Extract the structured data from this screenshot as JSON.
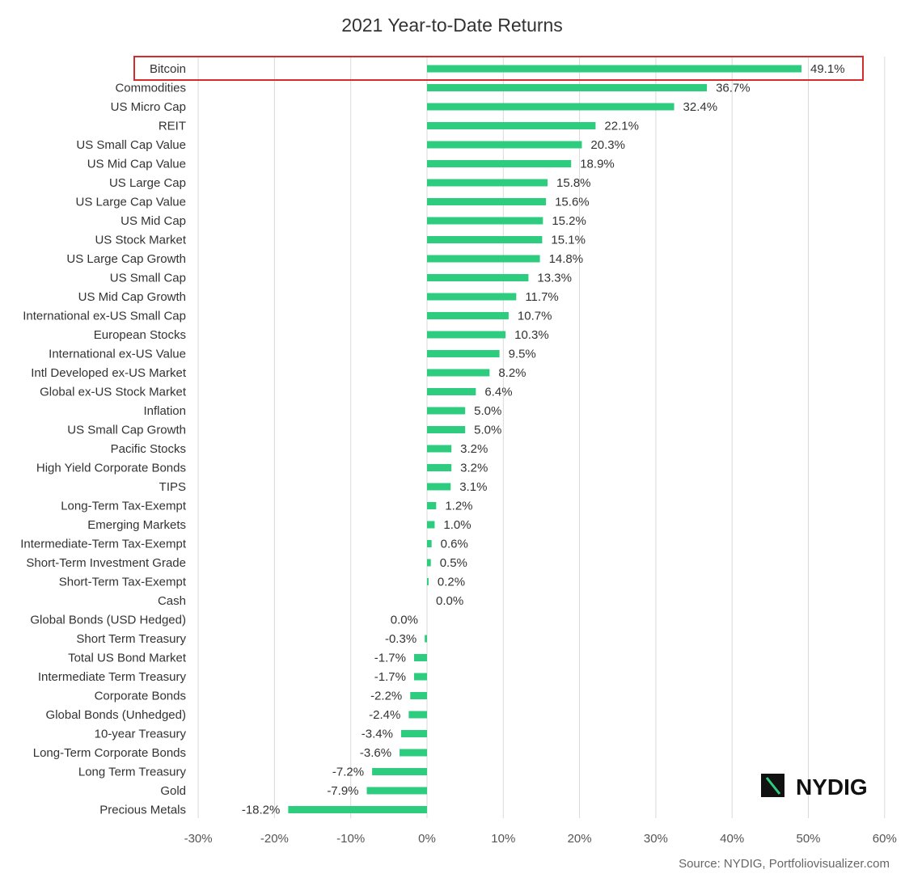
{
  "chart_data": {
    "type": "bar",
    "orientation": "horizontal",
    "title": "2021 Year-to-Date Returns",
    "xlabel": "",
    "ylabel": "",
    "xlim": [
      -30,
      60
    ],
    "x_ticks": [
      "-30%",
      "-20%",
      "-10%",
      "0%",
      "10%",
      "20%",
      "30%",
      "40%",
      "50%",
      "60%"
    ],
    "x_tick_values": [
      -30,
      -20,
      -10,
      0,
      10,
      20,
      30,
      40,
      50,
      60
    ],
    "grid": "vertical",
    "categories": [
      "Bitcoin",
      "Commodities",
      "US Micro Cap",
      "REIT",
      "US Small Cap Value",
      "US Mid Cap Value",
      "US Large Cap",
      "US Large Cap Value",
      "US Mid Cap",
      "US Stock Market",
      "US Large Cap Growth",
      "US Small Cap",
      "US Mid Cap Growth",
      "International ex-US Small Cap",
      "European Stocks",
      "International ex-US Value",
      "Intl Developed ex-US Market",
      "Global ex-US Stock Market",
      "Inflation",
      "US Small Cap Growth",
      "Pacific Stocks",
      "High Yield Corporate Bonds",
      "TIPS",
      "Long-Term Tax-Exempt",
      "Emerging Markets",
      "Intermediate-Term Tax-Exempt",
      "Short-Term Investment Grade",
      "Short-Term Tax-Exempt",
      "Cash",
      "Global Bonds (USD Hedged)",
      "Short Term Treasury",
      "Total US Bond Market",
      "Intermediate Term Treasury",
      "Corporate Bonds",
      "Global Bonds (Unhedged)",
      "10-year Treasury",
      "Long-Term Corporate Bonds",
      "Long Term Treasury",
      "Gold",
      "Precious Metals"
    ],
    "values": [
      49.1,
      36.7,
      32.4,
      22.1,
      20.3,
      18.9,
      15.8,
      15.6,
      15.2,
      15.1,
      14.8,
      13.3,
      11.7,
      10.7,
      10.3,
      9.5,
      8.2,
      6.4,
      5.0,
      5.0,
      3.2,
      3.2,
      3.1,
      1.2,
      1.0,
      0.6,
      0.5,
      0.2,
      0.0,
      0.0,
      -0.3,
      -1.7,
      -1.7,
      -2.2,
      -2.4,
      -3.4,
      -3.6,
      -7.2,
      -7.9,
      -18.2
    ],
    "value_labels": [
      "49.1%",
      "36.7%",
      "32.4%",
      "22.1%",
      "20.3%",
      "18.9%",
      "15.8%",
      "15.6%",
      "15.2%",
      "15.1%",
      "14.8%",
      "13.3%",
      "11.7%",
      "10.7%",
      "10.3%",
      "9.5%",
      "8.2%",
      "6.4%",
      "5.0%",
      "5.0%",
      "3.2%",
      "3.2%",
      "3.1%",
      "1.2%",
      "1.0%",
      "0.6%",
      "0.5%",
      "0.2%",
      "0.0%",
      "0.0%",
      "-0.3%",
      "-1.7%",
      "-1.7%",
      "-2.2%",
      "-2.4%",
      "-3.4%",
      "-3.6%",
      "-7.2%",
      "-7.9%",
      "-18.2%"
    ],
    "highlight": "Bitcoin"
  },
  "branding": {
    "logo_text": "NYDIG"
  },
  "source": "Source: NYDIG, Portfoliovisualizer.com",
  "colors": {
    "bar": "#2ecc7f",
    "highlight_box": "#d62b2b",
    "grid": "#d9d9d9",
    "text": "#333333",
    "logo": "#111111",
    "logo_accent": "#2ecc7f"
  }
}
